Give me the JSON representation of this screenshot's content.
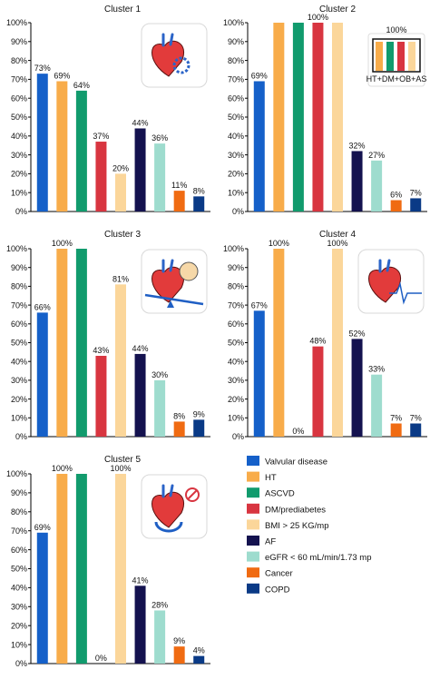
{
  "chart_data": {
    "type": "bar",
    "ylim": [
      0,
      100
    ],
    "yticks": [
      "0%",
      "10%",
      "20%",
      "30%",
      "40%",
      "50%",
      "60%",
      "70%",
      "80%",
      "90%",
      "100%"
    ],
    "series_colors": [
      "#1560c9",
      "#f8ac4a",
      "#119b6d",
      "#d83540",
      "#fbd69a",
      "#14124f",
      "#9edcce",
      "#f06b12",
      "#0a3a86"
    ],
    "legend": {
      "placement": "bottom-right",
      "entries": [
        "Valvular disease",
        "HT",
        "ASCVD",
        "DM/prediabetes",
        "BMI > 25 KG/mp",
        "AF",
        "eGFR < 60 mL/min/1.73 mp",
        "Cancer",
        "COPD"
      ]
    },
    "panels": [
      {
        "title": "Cluster 1",
        "values": [
          73,
          69,
          64,
          37,
          20,
          44,
          36,
          11,
          8
        ],
        "labels": [
          "73%",
          "69%",
          "64%",
          "37%",
          "20%",
          "44%",
          "36%",
          "11%",
          "8%"
        ],
        "icon": "heart-gear-icon"
      },
      {
        "title": "Cluster 2",
        "values": [
          69,
          100,
          100,
          100,
          100,
          32,
          27,
          6,
          7
        ],
        "labels": [
          "69%",
          "",
          "",
          "100%",
          "",
          "32%",
          "27%",
          "6%",
          "7%"
        ],
        "icon": "mini-bar-chart-icon",
        "icon_label": "100%",
        "icon_caption": "HT+DM+OB+AS"
      },
      {
        "title": "Cluster 3",
        "values": [
          66,
          100,
          100,
          43,
          81,
          44,
          30,
          8,
          9
        ],
        "labels": [
          "66%",
          "100%",
          "",
          "43%",
          "81%",
          "44%",
          "30%",
          "8%",
          "9%"
        ],
        "icon": "heart-balance-icon"
      },
      {
        "title": "Cluster 4",
        "values": [
          67,
          100,
          0,
          48,
          100,
          52,
          33,
          7,
          7
        ],
        "labels": [
          "67%",
          "100%",
          "0%",
          "48%",
          "100%",
          "52%",
          "33%",
          "7%",
          "7%"
        ],
        "icon": "heart-ecg-icon"
      },
      {
        "title": "Cluster 5",
        "values": [
          69,
          100,
          100,
          0,
          100,
          41,
          28,
          9,
          4
        ],
        "labels": [
          "69%",
          "100%",
          "",
          "0%",
          "100%",
          "41%",
          "28%",
          "9%",
          "4%"
        ],
        "icon": "heart-arrows-icon"
      }
    ]
  }
}
